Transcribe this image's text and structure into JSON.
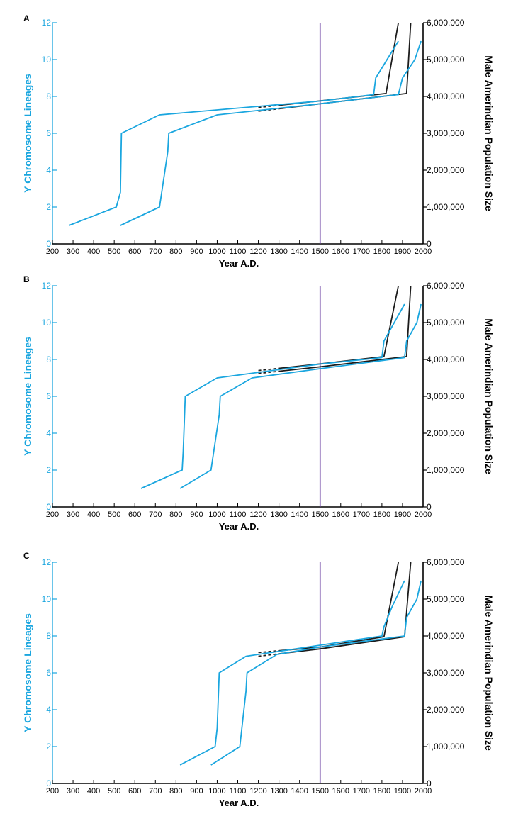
{
  "colors": {
    "lineage": "#1aa6df",
    "population": "#1c1c1c",
    "contact": "#6a3fa0",
    "axis": "#000000"
  },
  "chart_data": [
    {
      "type": "line",
      "panel": "A",
      "xlabel": "Year A.D.",
      "ylabel_left": "Y Chromosome Lineages",
      "ylabel_right": "Male Amerindian Population Size",
      "xlim": [
        200,
        2000
      ],
      "ylim_left": [
        0,
        12
      ],
      "ylim_right": [
        0,
        6000000
      ],
      "x_ticks": [
        "200",
        "300",
        "400",
        "500",
        "600",
        "700",
        "800",
        "900",
        "1000",
        "1100",
        "1200",
        "1300",
        "1400",
        "1500",
        "1600",
        "1700",
        "1800",
        "1900",
        "2000"
      ],
      "y_left_ticks": [
        "0",
        "2",
        "4",
        "6",
        "8",
        "10",
        "12"
      ],
      "y_right_ticks": [
        "0",
        "1,000,000",
        "2,000,000",
        "3,000,000",
        "4,000,000",
        "5,000,000",
        "6,000,000"
      ],
      "vline": 1500,
      "lineage_series": [
        {
          "name": "lineages-early",
          "points": [
            [
              280,
              1
            ],
            [
              510,
              2
            ],
            [
              530,
              2.8
            ],
            [
              535,
              6
            ],
            [
              720,
              7
            ],
            [
              1500,
              7.75
            ],
            [
              1760,
              8.1
            ],
            [
              1770,
              9
            ],
            [
              1880,
              11
            ]
          ]
        },
        {
          "name": "lineages-late",
          "points": [
            [
              530,
              1
            ],
            [
              720,
              2
            ],
            [
              760,
              5
            ],
            [
              765,
              6
            ],
            [
              1000,
              7
            ],
            [
              1500,
              7.6
            ],
            [
              1880,
              8.1
            ],
            [
              1900,
              9
            ],
            [
              1960,
              10
            ],
            [
              1990,
              11
            ]
          ]
        }
      ],
      "population_series": [
        {
          "name": "population-early",
          "points": [
            [
              1200,
              3700000
            ],
            [
              1500,
              3880000
            ],
            [
              1820,
              4080000
            ],
            [
              1880,
              6000000
            ]
          ],
          "dashed_until": 1300
        },
        {
          "name": "population-late",
          "points": [
            [
              1200,
              3600000
            ],
            [
              1500,
              3800000
            ],
            [
              1920,
              4080000
            ],
            [
              1940,
              6000000
            ]
          ],
          "dashed_until": 1300
        }
      ]
    },
    {
      "type": "line",
      "panel": "B",
      "xlabel": "Year A.D.",
      "ylabel_left": "Y Chromosome Lineages",
      "ylabel_right": "Male Amerindian Population Size",
      "xlim": [
        200,
        2000
      ],
      "ylim_left": [
        0,
        12
      ],
      "ylim_right": [
        0,
        6000000
      ],
      "x_ticks": [
        "200",
        "300",
        "400",
        "500",
        "600",
        "700",
        "800",
        "900",
        "1000",
        "1100",
        "1200",
        "1300",
        "1400",
        "1500",
        "1600",
        "1700",
        "1800",
        "1900",
        "2000"
      ],
      "y_left_ticks": [
        "0",
        "2",
        "4",
        "6",
        "8",
        "10",
        "12"
      ],
      "y_right_ticks": [
        "0",
        "1,000,000",
        "2,000,000",
        "3,000,000",
        "4,000,000",
        "5,000,000",
        "6,000,000"
      ],
      "vline": 1500,
      "lineage_series": [
        {
          "name": "lineages-early",
          "points": [
            [
              630,
              1
            ],
            [
              830,
              2
            ],
            [
              835,
              3
            ],
            [
              845,
              6
            ],
            [
              1000,
              7
            ],
            [
              1500,
              7.75
            ],
            [
              1800,
              8.1
            ],
            [
              1810,
              9
            ],
            [
              1910,
              11
            ]
          ]
        },
        {
          "name": "lineages-late",
          "points": [
            [
              820,
              1
            ],
            [
              970,
              2
            ],
            [
              1010,
              5
            ],
            [
              1015,
              6
            ],
            [
              1170,
              7
            ],
            [
              1500,
              7.5
            ],
            [
              1910,
              8.1
            ],
            [
              1920,
              9
            ],
            [
              1970,
              10
            ],
            [
              1990,
              11
            ]
          ]
        }
      ],
      "population_series": [
        {
          "name": "population-early",
          "points": [
            [
              1200,
              3700000
            ],
            [
              1500,
              3880000
            ],
            [
              1810,
              4080000
            ],
            [
              1880,
              6000000
            ]
          ],
          "dashed_until": 1300
        },
        {
          "name": "population-late",
          "points": [
            [
              1200,
              3620000
            ],
            [
              1500,
              3800000
            ],
            [
              1920,
              4080000
            ],
            [
              1940,
              6000000
            ]
          ],
          "dashed_until": 1300
        }
      ]
    },
    {
      "type": "line",
      "panel": "C",
      "xlabel": "Year A.D.",
      "ylabel_left": "Y Chromosome Lineages",
      "ylabel_right": "Male Amerindian Population Size",
      "xlim": [
        200,
        2000
      ],
      "ylim_left": [
        0,
        12
      ],
      "ylim_right": [
        0,
        6000000
      ],
      "x_ticks": [
        "200",
        "300",
        "400",
        "500",
        "600",
        "700",
        "800",
        "900",
        "1000",
        "1100",
        "1200",
        "1300",
        "1400",
        "1500",
        "1600",
        "1700",
        "1800",
        "1900",
        "2000"
      ],
      "y_left_ticks": [
        "0",
        "2",
        "4",
        "6",
        "8",
        "10",
        "12"
      ],
      "y_right_ticks": [
        "0",
        "1,000,000",
        "2,000,000",
        "3,000,000",
        "4,000,000",
        "5,000,000",
        "6,000,000"
      ],
      "vline": 1500,
      "lineage_series": [
        {
          "name": "lineages-early",
          "points": [
            [
              820,
              1
            ],
            [
              990,
              2
            ],
            [
              1000,
              3
            ],
            [
              1010,
              6
            ],
            [
              1140,
              6.9
            ],
            [
              1500,
              7.5
            ],
            [
              1800,
              8
            ],
            [
              1810,
              8.5
            ],
            [
              1850,
              9.6
            ],
            [
              1910,
              11
            ]
          ]
        },
        {
          "name": "lineages-late",
          "points": [
            [
              970,
              1
            ],
            [
              1110,
              2
            ],
            [
              1140,
              5
            ],
            [
              1145,
              6
            ],
            [
              1290,
              7
            ],
            [
              1500,
              7.4
            ],
            [
              1910,
              8
            ],
            [
              1920,
              9
            ],
            [
              1970,
              10
            ],
            [
              1990,
              11
            ]
          ]
        }
      ],
      "population_series": [
        {
          "name": "population-early",
          "points": [
            [
              1200,
              3550000
            ],
            [
              1500,
              3700000
            ],
            [
              1810,
              3980000
            ],
            [
              1880,
              6000000
            ]
          ],
          "dashed_until": 1300
        },
        {
          "name": "population-late",
          "points": [
            [
              1200,
              3450000
            ],
            [
              1500,
              3650000
            ],
            [
              1910,
              3980000
            ],
            [
              1940,
              6000000
            ]
          ],
          "dashed_until": 1300
        }
      ]
    }
  ]
}
